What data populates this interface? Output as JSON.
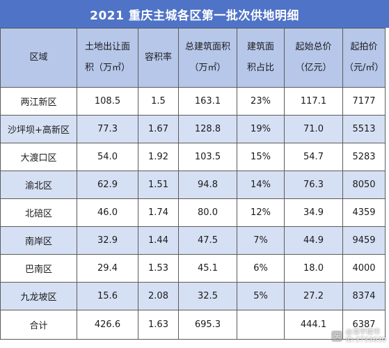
{
  "title": "2021 重庆主城各区第一批次供地明细",
  "headers": [
    [
      "区域"
    ],
    [
      "土地出让面",
      "积（万㎡）"
    ],
    [
      "容积率"
    ],
    [
      "总建筑面积",
      "（万㎡）"
    ],
    [
      "建筑面",
      "积占比"
    ],
    [
      "起始总价",
      "（亿元）"
    ],
    [
      "起拍价",
      "（元/㎡）"
    ]
  ],
  "rows": [
    {
      "district": "两江新区",
      "land_area": "108.5",
      "plot_ratio": "1.5",
      "building_area": "163.1",
      "share": "23%",
      "total_price": "117.1",
      "unit_price": "7177"
    },
    {
      "district": "沙坪坝+高新区",
      "land_area": "77.3",
      "plot_ratio": "1.67",
      "building_area": "128.8",
      "share": "19%",
      "total_price": "71.0",
      "unit_price": "5513"
    },
    {
      "district": "大渡口区",
      "land_area": "54.0",
      "plot_ratio": "1.92",
      "building_area": "103.5",
      "share": "15%",
      "total_price": "54.7",
      "unit_price": "5283"
    },
    {
      "district": "渝北区",
      "land_area": "62.9",
      "plot_ratio": "1.51",
      "building_area": "94.8",
      "share": "14%",
      "total_price": "76.3",
      "unit_price": "8050"
    },
    {
      "district": "北碚区",
      "land_area": "46.0",
      "plot_ratio": "1.74",
      "building_area": "80.0",
      "share": "12%",
      "total_price": "34.9",
      "unit_price": "4359"
    },
    {
      "district": "南岸区",
      "land_area": "32.9",
      "plot_ratio": "1.44",
      "building_area": "47.5",
      "share": "7%",
      "total_price": "44.9",
      "unit_price": "9459"
    },
    {
      "district": "巴南区",
      "land_area": "29.4",
      "plot_ratio": "1.53",
      "building_area": "45.1",
      "share": "6%",
      "total_price": "18.0",
      "unit_price": "4000"
    },
    {
      "district": "九龙坡区",
      "land_area": "15.6",
      "plot_ratio": "2.08",
      "building_area": "32.5",
      "share": "5%",
      "total_price": "27.2",
      "unit_price": "8374"
    }
  ],
  "total": {
    "district": "合计",
    "land_area": "426.6",
    "plot_ratio": "1.63",
    "building_area": "695.3",
    "share": "",
    "total_price": "444.1",
    "unit_price": "6387"
  },
  "watermark": {
    "logo": "头",
    "line1": "@浩宇楼市",
    "line2": "ID:3733630"
  },
  "colors": {
    "title_bg": "#4f73c6",
    "header_bg": "#b7c7ea",
    "stripe_bg": "#d6e0f4",
    "row_bg": "#ffffff",
    "border": "#5a5a5a"
  }
}
